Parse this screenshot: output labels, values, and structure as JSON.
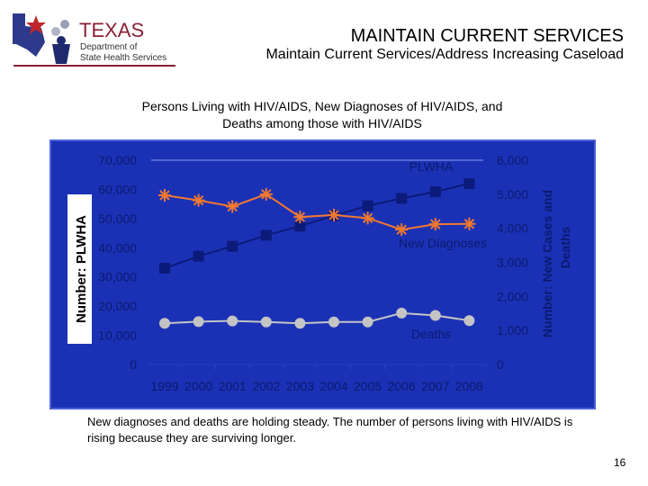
{
  "header": {
    "title": "MAINTAIN CURRENT SERVICES",
    "subtitle": "Maintain Current Services/Address Increasing Caseload",
    "logo": {
      "name": "TEXAS",
      "line1": "Department of",
      "line2": "State Health Services"
    }
  },
  "chart_title": [
    "Persons Living with HIV/AIDS, New Diagnoses of HIV/AIDS, and",
    "Deaths among those with HIV/AIDS"
  ],
  "caption": "New diagnoses and deaths are holding steady.  The number of persons living with HIV/AIDS is rising because they are surviving longer.",
  "page_number": "16",
  "colors": {
    "background": "#1b31b5",
    "plwha": "#0c1a7a",
    "new_diagnoses": "#f07830",
    "deaths": "#c4c4c4",
    "text": "#0a1a6e"
  },
  "chart_data": {
    "type": "line",
    "categories": [
      "1999",
      "2000",
      "2001",
      "2002",
      "2003",
      "2004",
      "2005",
      "2006",
      "2007",
      "2008"
    ],
    "y_left": {
      "label": "Number: PLWHA",
      "ylim": [
        0,
        70000
      ],
      "ticks": [
        "0",
        "10,000",
        "20,000",
        "30,000",
        "40,000",
        "50,000",
        "60,000",
        "70,000"
      ]
    },
    "y_right": {
      "label": [
        "Number: New Cases and",
        "Deaths"
      ],
      "ylim": [
        0,
        6000
      ],
      "ticks": [
        "0",
        "1,000",
        "2,000",
        "3,000",
        "4,000",
        "5,000",
        "6,000"
      ]
    },
    "series": [
      {
        "name": "PLWHA",
        "axis": "left",
        "marker": "square",
        "values": [
          33000,
          37100,
          40500,
          44300,
          47400,
          51000,
          54400,
          56900,
          59200,
          62000
        ]
      },
      {
        "name": "New Diagnoses",
        "axis": "right",
        "marker": "asterisk",
        "values": [
          4970,
          4820,
          4640,
          5000,
          4330,
          4390,
          4300,
          3960,
          4120,
          4130
        ]
      },
      {
        "name": "Deaths",
        "axis": "right",
        "marker": "circle",
        "values": [
          1210,
          1260,
          1280,
          1250,
          1210,
          1250,
          1250,
          1510,
          1440,
          1290
        ]
      }
    ],
    "grid": false,
    "legend": "inline labels"
  }
}
